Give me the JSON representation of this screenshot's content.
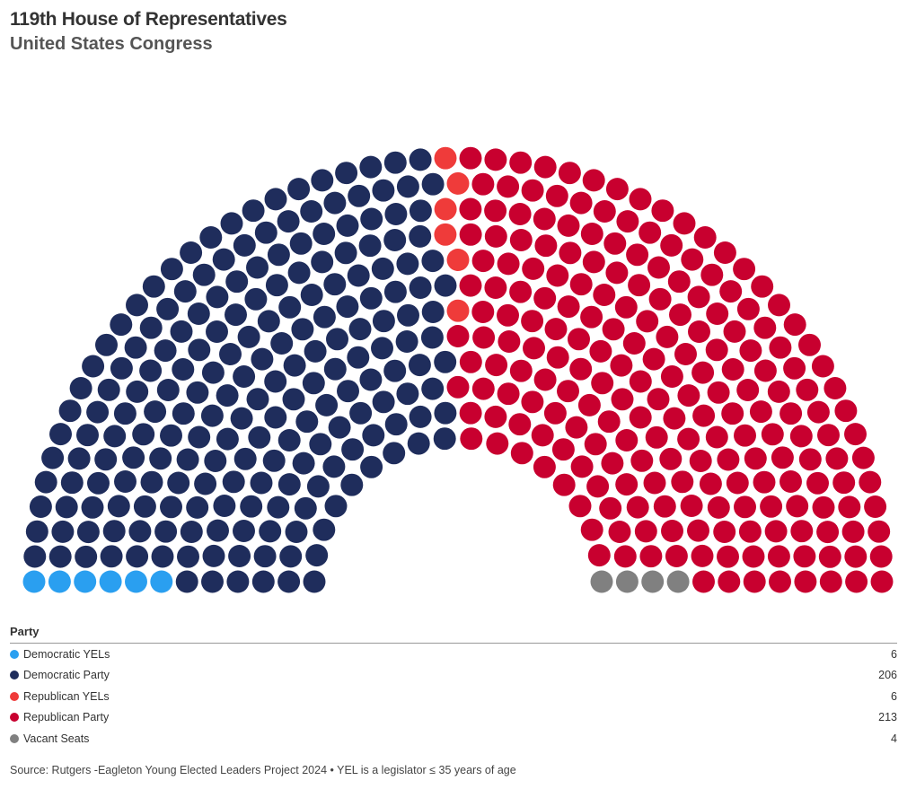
{
  "title": "119th House of Representatives",
  "subtitle": "United States Congress",
  "chart_data": {
    "type": "parliament",
    "total_seats": 435,
    "legend_title": "Party",
    "parties": [
      {
        "name": "Democratic YELs",
        "seats": 6,
        "color": "#2a9ff0"
      },
      {
        "name": "Democratic Party",
        "seats": 206,
        "color": "#1f2d5c"
      },
      {
        "name": "Republican YELs",
        "seats": 6,
        "color": "#ef3b3a"
      },
      {
        "name": "Republican Party",
        "seats": 213,
        "color": "#c8002f"
      },
      {
        "name": "Vacant Seats",
        "seats": 4,
        "color": "#808080"
      }
    ]
  },
  "source": "Source: Rutgers -Eagleton Young Elected Leaders Project 2024 • YEL is a legislator ≤ 35 years of age"
}
